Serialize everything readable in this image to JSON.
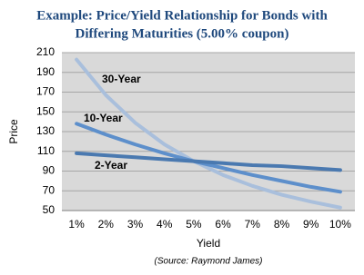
{
  "chart_data": {
    "type": "line",
    "title": [
      "Example: Price/Yield Relationship for Bonds with",
      "Differing Maturities (5.00% coupon)"
    ],
    "xlabel": "Yield",
    "ylabel": "Price",
    "source": "(Source: Raymond James)",
    "categories": [
      "1%",
      "2%",
      "3%",
      "4%",
      "5%",
      "6%",
      "7%",
      "8%",
      "9%",
      "10%"
    ],
    "series": [
      {
        "name": "30-Year",
        "color": "#a9bfdc",
        "values": [
          203,
          167,
          139,
          117,
          100,
          86,
          75,
          66,
          59,
          53
        ]
      },
      {
        "name": "10-Year",
        "color": "#5d8fcb",
        "values": [
          138,
          127,
          117,
          108,
          100,
          93,
          86,
          80,
          74,
          69
        ]
      },
      {
        "name": "2-Year",
        "color": "#4a79b0",
        "values": [
          108,
          106,
          104,
          102,
          100,
          98,
          96,
          95,
          93,
          91
        ]
      }
    ],
    "ylim": [
      50,
      210
    ],
    "yticks": [
      50,
      70,
      90,
      110,
      130,
      150,
      170,
      190,
      210
    ],
    "grid": true
  }
}
